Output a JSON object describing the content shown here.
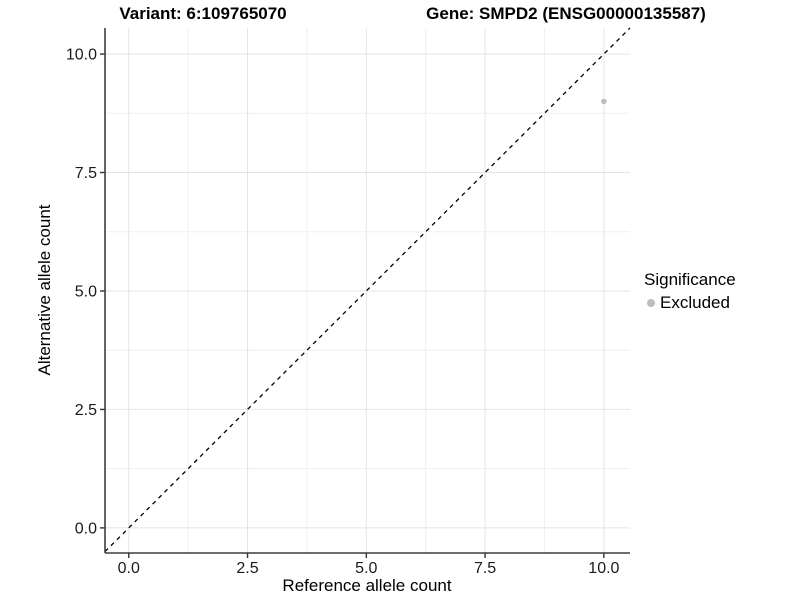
{
  "chart_data": {
    "type": "scatter",
    "title_left": "Variant: 6:109765070",
    "title_right": "Gene: SMPD2 (ENSG00000135587)",
    "xlabel": "Reference allele count",
    "ylabel": "Alternative allele count",
    "xlim": [
      -0.5,
      10.55
    ],
    "ylim": [
      -0.53,
      10.55
    ],
    "x_ticks": [
      0,
      2.5,
      5,
      7.5,
      10
    ],
    "x_tick_labels": [
      "0.0",
      "2.5",
      "5.0",
      "7.5",
      "10.0"
    ],
    "y_ticks": [
      0,
      2.5,
      5,
      7.5,
      10
    ],
    "y_tick_labels": [
      "0.0",
      "2.5",
      "5.0",
      "7.5",
      "10.0"
    ],
    "minor_ticks": [
      1.25,
      3.75,
      6.25,
      8.75
    ],
    "grid": true,
    "identity_line": {
      "slope": 1,
      "intercept": 0,
      "style": "dashed",
      "color": "#000000"
    },
    "series": [
      {
        "name": "Excluded",
        "points": [
          [
            10,
            9
          ]
        ],
        "color": "#bdbdbd",
        "point_radius": 2.8
      }
    ],
    "legend": {
      "position": "right",
      "title": "Significance",
      "entries": [
        {
          "label": "Excluded",
          "color": "#bdbdbd"
        }
      ]
    },
    "colors": {
      "grid_major": "#e4e4e4",
      "grid_minor": "#efefef",
      "axis_line": "#3d3d3d",
      "tick_mark": "#333333",
      "tick_text": "#1a1a1a"
    }
  }
}
